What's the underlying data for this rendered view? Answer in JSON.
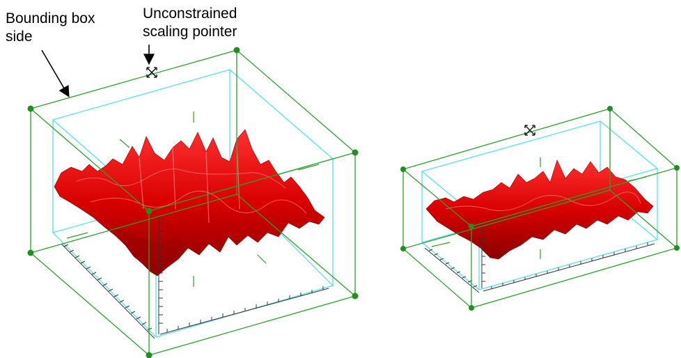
{
  "annotations": {
    "bounding_box_side": {
      "line1": "Bounding box",
      "line2": "side"
    },
    "unconstrained_scaling_pointer": {
      "line1": "Unconstrained",
      "line2": "scaling pointer"
    }
  },
  "colors": {
    "bounding_box": "#2e9e2e",
    "inner_box": "#58e0e6",
    "surface": "#e01010",
    "surface_shadow": "#9a0000",
    "highlight": "#ff8080",
    "handle": "#1f8f1f",
    "axis": "#333333"
  },
  "icons": [
    "scaling-pointer-icon",
    "arrow-icon"
  ]
}
